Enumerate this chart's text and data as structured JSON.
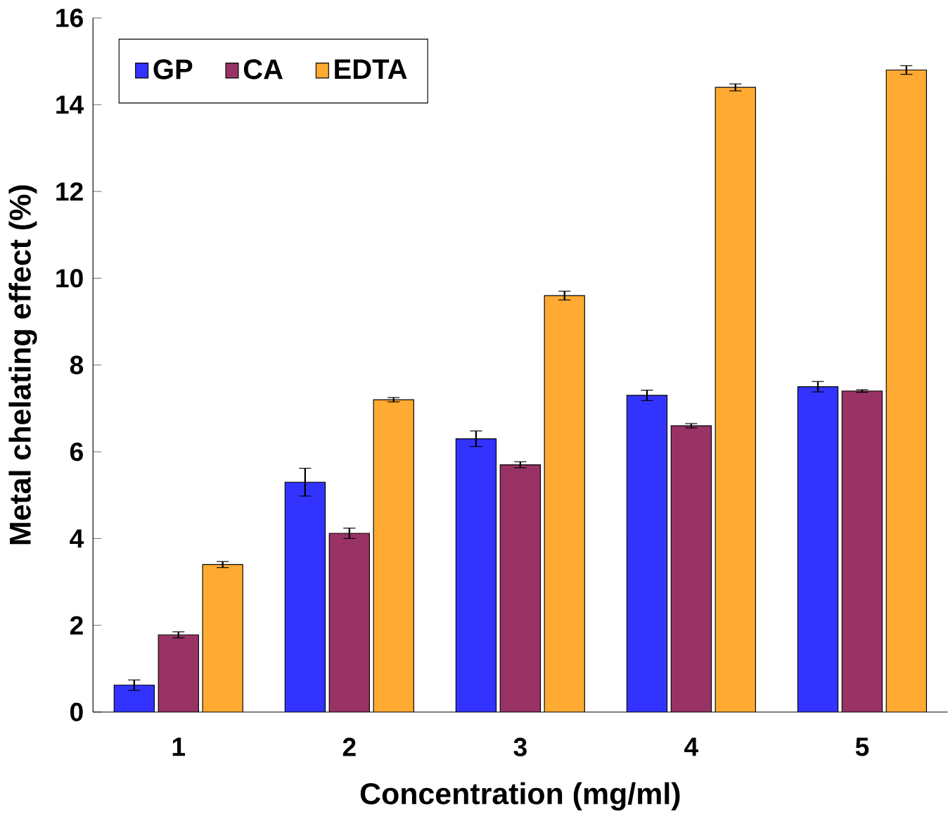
{
  "chart_data": {
    "type": "bar",
    "xlabel": "Concentration (mg/ml)",
    "ylabel": "Metal chelating effect (%)",
    "categories": [
      "1",
      "2",
      "3",
      "4",
      "5"
    ],
    "series": [
      {
        "name": "GP",
        "color": "#3333ff",
        "values": [
          0.62,
          5.3,
          6.3,
          7.3,
          7.5
        ],
        "errors": [
          0.12,
          0.32,
          0.18,
          0.12,
          0.12
        ]
      },
      {
        "name": "CA",
        "color": "#993366",
        "values": [
          1.78,
          4.12,
          5.7,
          6.6,
          7.4
        ],
        "errors": [
          0.07,
          0.12,
          0.07,
          0.05,
          0.03
        ]
      },
      {
        "name": "EDTA",
        "color": "#ffaa33",
        "values": [
          3.4,
          7.2,
          9.6,
          14.4,
          14.8
        ],
        "errors": [
          0.07,
          0.05,
          0.1,
          0.08,
          0.1
        ]
      }
    ],
    "ylim": [
      0,
      16
    ],
    "yticks": [
      0,
      2,
      4,
      6,
      8,
      10,
      12,
      14,
      16
    ],
    "legend": "top left",
    "grid": false
  }
}
